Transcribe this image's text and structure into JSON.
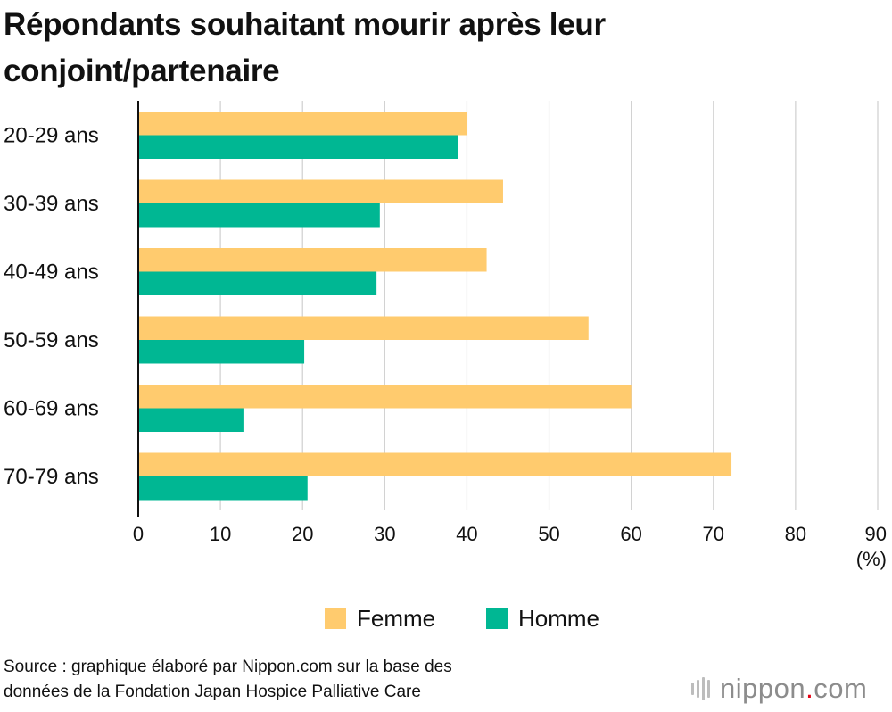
{
  "colors": {
    "femme": "#FFCB6E",
    "homme": "#00B793",
    "grid": "#cfcfcf",
    "axis": "#111111",
    "brand_dot": "#e60012"
  },
  "chart_data": {
    "type": "bar",
    "orientation": "horizontal",
    "title": "Répondants souhaitant mourir après leur conjoint/partenaire",
    "categories": [
      "20-29 ans",
      "30-39 ans",
      "40-49 ans",
      "50-59 ans",
      "60-69 ans",
      "70-79 ans"
    ],
    "series": [
      {
        "name": "Femme",
        "color": "#FFCB6E",
        "values": [
          40.0,
          44.4,
          42.4,
          54.8,
          60.0,
          72.2
        ]
      },
      {
        "name": "Homme",
        "color": "#00B793",
        "values": [
          38.9,
          29.4,
          29.0,
          20.2,
          12.8,
          20.6
        ]
      }
    ],
    "xticks": [
      "0",
      "10",
      "20",
      "30",
      "40",
      "50",
      "60",
      "70",
      "80",
      "90"
    ],
    "xlim": [
      0,
      90
    ],
    "unit_label": "(%)",
    "grid": true,
    "legend_position": "bottom"
  },
  "source_line1": "Source : graphique élaboré par Nippon.com sur la base des",
  "source_line2": "données de la Fondation Japan Hospice Palliative Care",
  "logo": {
    "name": "nippon",
    "dot": ".",
    "suffix": "com"
  }
}
